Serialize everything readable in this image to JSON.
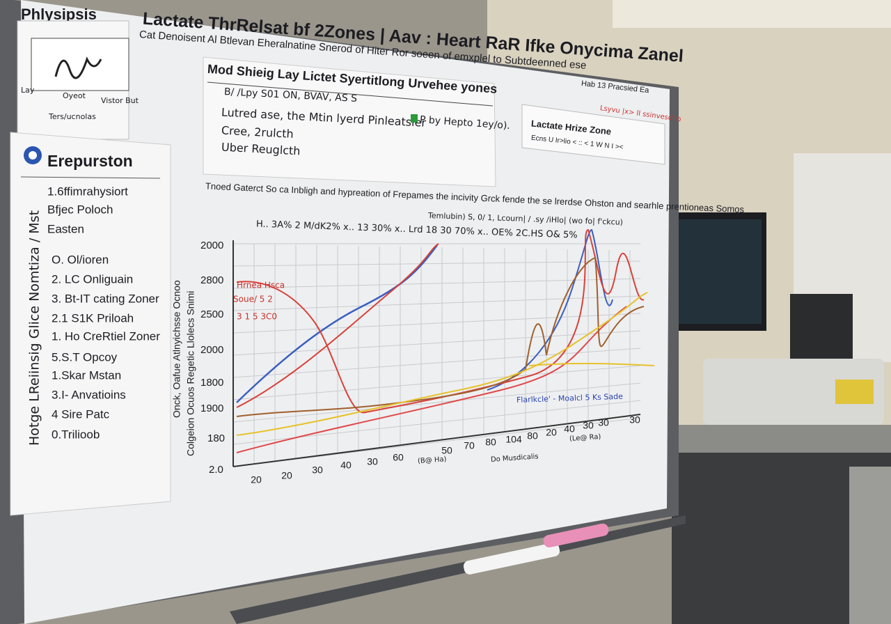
{
  "header": {
    "corner_label": "Phlysipsis",
    "title": "Lactate ThrRelsat bf 2Zones | Aav : Heart RaR Ifke Onycima Zanel",
    "subtitle": "Cat Denoisent Al Btlevan Eheralnatine Snerod of Hiter Ror soeen of emxplel to Subtdeenned ese"
  },
  "note_card": {
    "items": [
      "Lay",
      "Oyeot",
      "Vistor But",
      "Ters/ucnolas"
    ]
  },
  "info_card": {
    "title": "Mod Shieig Lay Lictet Syertitlong Urvehee yones",
    "lines": [
      "B/ /Lpy S01 ON, BVAV, AS S",
      "Lutred ase, the Mtin lyerd Pinleatsier",
      "Cree, 2rulcth",
      "Uber Reuglcth"
    ],
    "badge": "P by Hepto 1ey/o)."
  },
  "zone_card": {
    "tag": "Hab 13 Pracsied Ea",
    "title": "Lactate Hrize Zone",
    "line": "Ecns U Ir>lio  <  ::  <  1  W  N  I  ><",
    "red_note": "Lsyvu |x> lI ssinvesdno"
  },
  "side_panel": {
    "title": "Erepurston",
    "items": [
      "1.6ffimrahysiort",
      "Bfjec Poloch",
      "Easten",
      "O. Ol/ioren",
      "2. LC Onliguain",
      "3. Bt-IT cating Zoner",
      "2.1 S1K Priloah",
      "1. Ho CreRtiel Zoner",
      "5.S.T Opcoy",
      "1.Skar Mstan",
      "3.I- Anvatioins",
      "4 Sire Patc",
      "0.Trilioob"
    ],
    "vertical": "Hotge LReiinsig  Glice Nomtiza / Mst"
  },
  "chart": {
    "heading": "Tnoed Gaterct So ca Inbligh and hypreation of Frepames the incivity Grck fende the se lrerdse Ohston and searhle prentioneas Somos",
    "annotation": "H.. 3A%   2 M/dK2%   x.. 13 30%   x.. Lrd 18 30 70%   x..  OE%   2C.HS  O&  5%",
    "sub_annotation": "Temlubin) S, 0/ 1, Lcourn| / .sy /iHlo| (wo fo| f'ckcu)",
    "y_title": [
      "Onck, Oafue Atlnyichsse Ocnoo",
      "Colgeion Ocuos Regetic Llolecs Snimi"
    ],
    "y_labels": [
      "2000",
      "2800",
      "2500",
      "2000",
      "1800",
      "1900",
      "180",
      "2.0"
    ],
    "x_labels": [
      "20",
      "20",
      "30",
      "40",
      "30",
      "60",
      "50",
      "70",
      "80",
      "104",
      "80",
      "20",
      "40",
      "30",
      "30",
      "30"
    ],
    "x_unit_notes": [
      "(B@ Ha)",
      "Do Musdicalis",
      "(Le@ Ra)"
    ],
    "red_notes": [
      "Hrnea Hsca",
      "Soue/ 5 2",
      "3 1 5 3C0"
    ],
    "blue_note": "Flarlkcle' - Moalcl  5 Ks Sade"
  }
}
